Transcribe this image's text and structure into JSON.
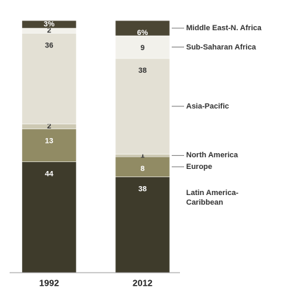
{
  "chart_data": {
    "type": "bar",
    "stacked": true,
    "categories": [
      "1992",
      "2012"
    ],
    "ylim": [
      0,
      100
    ],
    "series": [
      {
        "name": "Latin America-Caribbean",
        "color": "#3e3b2b",
        "values": [
          44,
          38
        ]
      },
      {
        "name": "Europe",
        "color": "#918b64",
        "values": [
          13,
          8
        ]
      },
      {
        "name": "North America",
        "color": "#cdc9b3",
        "values": [
          2,
          1
        ]
      },
      {
        "name": "Asia-Pacific",
        "color": "#e3e0d4",
        "values": [
          36,
          38
        ]
      },
      {
        "name": "Sub-Saharan Africa",
        "color": "#f2f1eb",
        "values": [
          2,
          9
        ]
      },
      {
        "name": "Middle East-N. Africa",
        "color": "#4b4634",
        "values": [
          3,
          6
        ],
        "value_labels": [
          "3%",
          "6%"
        ]
      }
    ]
  }
}
